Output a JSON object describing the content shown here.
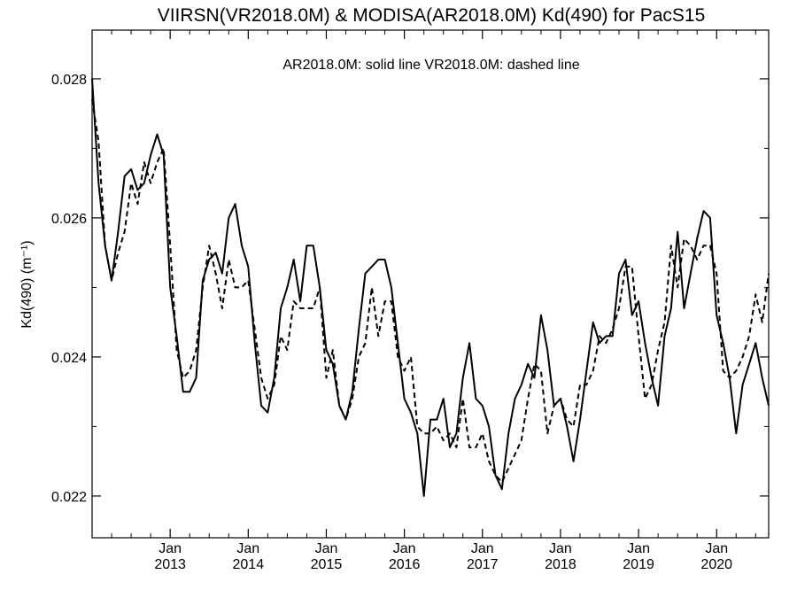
{
  "chart_data": {
    "type": "line",
    "title": "VIIRSN(VR2018.0M) & MODISA(AR2018.0M)  Kd(490) for PacS15",
    "legend_text": "AR2018.0M: solid line   VR2018.0M: dashed line",
    "ylabel": "Kd(490) (m⁻¹)",
    "xlabel": "",
    "xlim": [
      "2012-01",
      "2020-09"
    ],
    "ylim": [
      0.0214,
      0.0287
    ],
    "grid": false,
    "y_ticks": [
      0.022,
      0.024,
      0.026,
      0.028
    ],
    "y_tick_labels": [
      "0.022",
      "0.024",
      "0.026",
      "0.028"
    ],
    "x_ticks": [
      {
        "month": "Jan",
        "year": "2013",
        "date": "2013-01"
      },
      {
        "month": "Jan",
        "year": "2014",
        "date": "2014-01"
      },
      {
        "month": "Jan",
        "year": "2015",
        "date": "2015-01"
      },
      {
        "month": "Jan",
        "year": "2016",
        "date": "2016-01"
      },
      {
        "month": "Jan",
        "year": "2017",
        "date": "2017-01"
      },
      {
        "month": "Jan",
        "year": "2018",
        "date": "2018-01"
      },
      {
        "month": "Jan",
        "year": "2019",
        "date": "2019-01"
      },
      {
        "month": "Jan",
        "year": "2020",
        "date": "2020-01"
      }
    ],
    "series": [
      {
        "name": "AR2018.0M",
        "style": "solid",
        "color": "#000000",
        "start": "2012-01",
        "values": [
          0.028,
          0.0265,
          0.0256,
          0.0251,
          0.0258,
          0.0266,
          0.0267,
          0.0264,
          0.0265,
          0.0269,
          0.0272,
          0.0269,
          0.025,
          0.0243,
          0.0235,
          0.0235,
          0.0237,
          0.0251,
          0.0254,
          0.0255,
          0.0252,
          0.026,
          0.0262,
          0.0256,
          0.0253,
          0.0242,
          0.0233,
          0.0232,
          0.0237,
          0.0247,
          0.025,
          0.0254,
          0.0248,
          0.0256,
          0.0256,
          0.025,
          0.0241,
          0.0239,
          0.0233,
          0.0231,
          0.0235,
          0.0244,
          0.0252,
          0.0253,
          0.0254,
          0.0254,
          0.025,
          0.0242,
          0.0234,
          0.0232,
          0.0229,
          0.022,
          0.0231,
          0.0231,
          0.0234,
          0.0227,
          0.0229,
          0.0237,
          0.0242,
          0.0234,
          0.0233,
          0.023,
          0.0223,
          0.0221,
          0.0229,
          0.0234,
          0.0236,
          0.0239,
          0.0237,
          0.0246,
          0.0241,
          0.0233,
          0.0234,
          0.023,
          0.0225,
          0.0231,
          0.0238,
          0.0245,
          0.0242,
          0.0243,
          0.0243,
          0.0252,
          0.0254,
          0.0246,
          0.0248,
          0.0242,
          0.0237,
          0.0233,
          0.0243,
          0.0247,
          0.0258,
          0.0247,
          0.0252,
          0.0257,
          0.0261,
          0.026,
          0.0246,
          0.0242,
          0.0237,
          0.0229,
          0.0236,
          0.0239,
          0.0242,
          0.0237,
          0.0233
        ]
      },
      {
        "name": "VR2018.0M",
        "style": "dashed",
        "color": "#000000",
        "start": "2012-01",
        "values": [
          0.0277,
          0.0271,
          0.0256,
          0.0251,
          0.0255,
          0.0258,
          0.0265,
          0.0262,
          0.0268,
          0.0265,
          0.0268,
          0.027,
          0.0256,
          0.0241,
          0.0237,
          0.0238,
          0.0241,
          0.025,
          0.0256,
          0.0252,
          0.0247,
          0.0254,
          0.025,
          0.025,
          0.0251,
          0.0244,
          0.0237,
          0.0234,
          0.0236,
          0.0243,
          0.0241,
          0.0248,
          0.0247,
          0.0247,
          0.0247,
          0.025,
          0.0237,
          0.0241,
          0.0233,
          0.0231,
          0.0234,
          0.024,
          0.0242,
          0.025,
          0.0243,
          0.0248,
          0.0248,
          0.024,
          0.0238,
          0.024,
          0.023,
          0.0229,
          0.0229,
          0.023,
          0.0228,
          0.0229,
          0.0227,
          0.0234,
          0.0227,
          0.0227,
          0.0229,
          0.0225,
          0.0223,
          0.0222,
          0.0224,
          0.0226,
          0.0228,
          0.0234,
          0.0239,
          0.0238,
          0.0229,
          0.0233,
          0.0234,
          0.0231,
          0.023,
          0.0236,
          0.0236,
          0.0238,
          0.0243,
          0.0242,
          0.0244,
          0.0247,
          0.0253,
          0.0253,
          0.0243,
          0.0234,
          0.0236,
          0.0241,
          0.0245,
          0.0256,
          0.025,
          0.0257,
          0.0256,
          0.0254,
          0.0256,
          0.0256,
          0.0252,
          0.0238,
          0.0237,
          0.0238,
          0.024,
          0.0243,
          0.0249,
          0.0245,
          0.0252
        ]
      }
    ]
  }
}
